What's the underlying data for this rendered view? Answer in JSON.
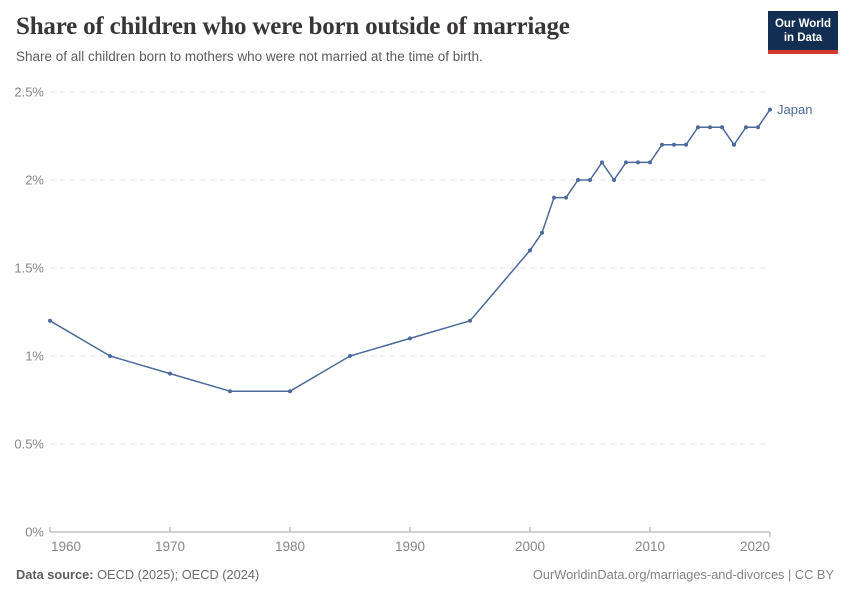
{
  "header": {
    "logo": {
      "line1": "Our World",
      "line2": "in Data"
    }
  },
  "footer": {
    "source_label": "Data source:",
    "source_text": " OECD (2025); OECD (2024)",
    "rights": "OurWorldinData.org/marriages-and-divorces | CC BY"
  },
  "colors": {
    "line": "#4c6a9c",
    "entity_label": "#4c6a9c",
    "grid": "#e2e2e2",
    "axis": "#a5a5a5",
    "tick_label": "#878787",
    "logo_bg": "#132e53",
    "logo_red": "#d4382e"
  },
  "chart_data": {
    "type": "line",
    "title": "Share of children who were born outside of marriage",
    "subtitle": "Share of all children born to mothers who were not married at the time of birth.",
    "xlabel": "",
    "ylabel": "",
    "xlim": [
      1960,
      2020
    ],
    "ylim": [
      0,
      2.5
    ],
    "grid": "horizontal-dashed",
    "legend_position": "end-of-line-label",
    "xticks": [
      "1960",
      "1970",
      "1980",
      "1990",
      "2000",
      "2010",
      "2020"
    ],
    "yticks": [
      {
        "value": 0,
        "label": "0%"
      },
      {
        "value": 0.5,
        "label": "0.5%"
      },
      {
        "value": 1,
        "label": "1%"
      },
      {
        "value": 1.5,
        "label": "1.5%"
      },
      {
        "value": 2,
        "label": "2%"
      },
      {
        "value": 2.5,
        "label": "2.5%"
      }
    ],
    "series": [
      {
        "name": "Japan",
        "points": [
          [
            1960,
            1.2
          ],
          [
            1965,
            1.0
          ],
          [
            1970,
            0.9
          ],
          [
            1975,
            0.8
          ],
          [
            1980,
            0.8
          ],
          [
            1985,
            1.0
          ],
          [
            1990,
            1.1
          ],
          [
            1995,
            1.2
          ],
          [
            2000,
            1.6
          ],
          [
            2001,
            1.7
          ],
          [
            2002,
            1.9
          ],
          [
            2003,
            1.9
          ],
          [
            2004,
            2.0
          ],
          [
            2005,
            2.0
          ],
          [
            2006,
            2.1
          ],
          [
            2007,
            2.0
          ],
          [
            2008,
            2.1
          ],
          [
            2009,
            2.1
          ],
          [
            2010,
            2.1
          ],
          [
            2011,
            2.2
          ],
          [
            2012,
            2.2
          ],
          [
            2013,
            2.2
          ],
          [
            2014,
            2.3
          ],
          [
            2015,
            2.3
          ],
          [
            2016,
            2.3
          ],
          [
            2017,
            2.2
          ],
          [
            2018,
            2.3
          ],
          [
            2019,
            2.3
          ],
          [
            2020,
            2.4
          ]
        ]
      }
    ]
  }
}
